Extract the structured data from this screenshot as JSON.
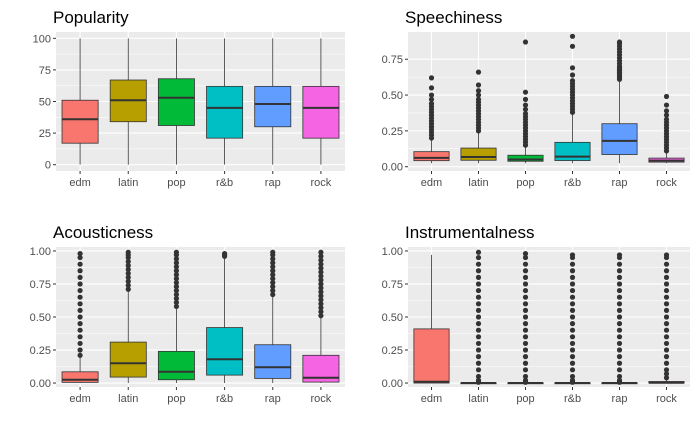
{
  "chart_data": [
    {
      "type": "boxplot",
      "title": "Popularity",
      "xlabel": "",
      "ylabel": "",
      "categories": [
        "edm",
        "latin",
        "pop",
        "r&b",
        "rap",
        "rock"
      ],
      "colors": [
        "#F8766D",
        "#B79F00",
        "#00BA38",
        "#00BFC4",
        "#619CFF",
        "#F564E3"
      ],
      "ylim": [
        -5,
        105
      ],
      "yticks": [
        0,
        25,
        50,
        75,
        100
      ],
      "ytick_labels": [
        "0",
        "25",
        "50",
        "75",
        "100"
      ],
      "grid": true,
      "boxes": [
        {
          "min": 0,
          "q1": 17,
          "median": 36,
          "q3": 51,
          "max": 100,
          "outliers": []
        },
        {
          "min": 0,
          "q1": 34,
          "median": 51,
          "q3": 67,
          "max": 100,
          "outliers": []
        },
        {
          "min": 0,
          "q1": 31,
          "median": 53,
          "q3": 68,
          "max": 100,
          "outliers": []
        },
        {
          "min": 0,
          "q1": 21,
          "median": 45,
          "q3": 62,
          "max": 100,
          "outliers": []
        },
        {
          "min": 0,
          "q1": 30,
          "median": 48,
          "q3": 62,
          "max": 100,
          "outliers": []
        },
        {
          "min": 0,
          "q1": 21,
          "median": 45,
          "q3": 62,
          "max": 100,
          "outliers": []
        }
      ]
    },
    {
      "type": "boxplot",
      "title": "Speechiness",
      "xlabel": "",
      "ylabel": "",
      "categories": [
        "edm",
        "latin",
        "pop",
        "r&b",
        "rap",
        "rock"
      ],
      "colors": [
        "#F8766D",
        "#B79F00",
        "#00BA38",
        "#00BFC4",
        "#619CFF",
        "#F564E3"
      ],
      "ylim": [
        -0.03,
        0.94
      ],
      "yticks": [
        0,
        0.25,
        0.5,
        0.75
      ],
      "ytick_labels": [
        "0.00",
        "0.25",
        "0.50",
        "0.75"
      ],
      "grid": true,
      "boxes": [
        {
          "min": 0.024,
          "q1": 0.042,
          "median": 0.062,
          "q3": 0.105,
          "max": 0.19,
          "outliers": [
            0.2,
            0.22,
            0.24,
            0.26,
            0.28,
            0.3,
            0.32,
            0.34,
            0.36,
            0.38,
            0.4,
            0.42,
            0.44,
            0.47,
            0.5,
            0.55,
            0.62
          ]
        },
        {
          "min": 0.024,
          "q1": 0.045,
          "median": 0.068,
          "q3": 0.13,
          "max": 0.24,
          "outliers": [
            0.25,
            0.27,
            0.29,
            0.31,
            0.33,
            0.35,
            0.37,
            0.39,
            0.41,
            0.43,
            0.45,
            0.47,
            0.5,
            0.53,
            0.57,
            0.66
          ]
        },
        {
          "min": 0.024,
          "q1": 0.038,
          "median": 0.05,
          "q3": 0.08,
          "max": 0.14,
          "outliers": [
            0.15,
            0.17,
            0.19,
            0.21,
            0.23,
            0.25,
            0.27,
            0.29,
            0.31,
            0.33,
            0.35,
            0.37,
            0.4,
            0.43,
            0.47,
            0.52,
            0.87
          ]
        },
        {
          "min": 0.024,
          "q1": 0.043,
          "median": 0.07,
          "q3": 0.17,
          "max": 0.37,
          "outliers": [
            0.38,
            0.4,
            0.42,
            0.44,
            0.46,
            0.48,
            0.5,
            0.52,
            0.54,
            0.56,
            0.58,
            0.6,
            0.64,
            0.69,
            0.84,
            0.91
          ]
        },
        {
          "min": 0.024,
          "q1": 0.085,
          "median": 0.18,
          "q3": 0.3,
          "max": 0.6,
          "outliers": [
            0.61,
            0.62,
            0.63,
            0.64,
            0.65,
            0.66,
            0.67,
            0.68,
            0.69,
            0.7,
            0.72,
            0.74,
            0.76,
            0.78,
            0.8,
            0.82,
            0.84,
            0.86,
            0.87
          ]
        },
        {
          "min": 0.024,
          "q1": 0.032,
          "median": 0.042,
          "q3": 0.06,
          "max": 0.1,
          "outliers": [
            0.11,
            0.13,
            0.15,
            0.17,
            0.19,
            0.21,
            0.23,
            0.25,
            0.27,
            0.29,
            0.31,
            0.33,
            0.36,
            0.39,
            0.43,
            0.49
          ]
        }
      ]
    },
    {
      "type": "boxplot",
      "title": "Acousticness",
      "xlabel": "",
      "ylabel": "",
      "categories": [
        "edm",
        "latin",
        "pop",
        "r&b",
        "rap",
        "rock"
      ],
      "colors": [
        "#F8766D",
        "#B79F00",
        "#00BA38",
        "#00BFC4",
        "#619CFF",
        "#F564E3"
      ],
      "ylim": [
        -0.03,
        1.03
      ],
      "yticks": [
        0,
        0.25,
        0.5,
        0.75,
        1
      ],
      "ytick_labels": [
        "0.00",
        "0.25",
        "0.50",
        "0.75",
        "1.00"
      ],
      "grid": true,
      "boxes": [
        {
          "min": 0,
          "q1": 0.005,
          "median": 0.025,
          "q3": 0.085,
          "max": 0.2,
          "outliers": [
            0.21,
            0.25,
            0.3,
            0.35,
            0.4,
            0.45,
            0.5,
            0.55,
            0.6,
            0.65,
            0.7,
            0.75,
            0.8,
            0.85,
            0.9,
            0.95,
            0.98
          ]
        },
        {
          "min": 0,
          "q1": 0.045,
          "median": 0.15,
          "q3": 0.31,
          "max": 0.7,
          "outliers": [
            0.71,
            0.74,
            0.77,
            0.8,
            0.83,
            0.86,
            0.89,
            0.92,
            0.95,
            0.97,
            0.99
          ]
        },
        {
          "min": 0,
          "q1": 0.025,
          "median": 0.085,
          "q3": 0.24,
          "max": 0.57,
          "outliers": [
            0.58,
            0.61,
            0.64,
            0.67,
            0.7,
            0.73,
            0.76,
            0.79,
            0.82,
            0.85,
            0.88,
            0.91,
            0.94,
            0.97,
            0.99
          ]
        },
        {
          "min": 0,
          "q1": 0.06,
          "median": 0.18,
          "q3": 0.42,
          "max": 0.95,
          "outliers": [
            0.96,
            0.97,
            0.98
          ]
        },
        {
          "min": 0,
          "q1": 0.035,
          "median": 0.12,
          "q3": 0.29,
          "max": 0.66,
          "outliers": [
            0.67,
            0.7,
            0.73,
            0.76,
            0.79,
            0.82,
            0.85,
            0.88,
            0.91,
            0.94,
            0.97,
            0.99
          ]
        },
        {
          "min": 0,
          "q1": 0.007,
          "median": 0.04,
          "q3": 0.21,
          "max": 0.5,
          "outliers": [
            0.51,
            0.54,
            0.57,
            0.6,
            0.63,
            0.66,
            0.69,
            0.72,
            0.75,
            0.78,
            0.81,
            0.84,
            0.87,
            0.9,
            0.93,
            0.96,
            0.99
          ]
        }
      ]
    },
    {
      "type": "boxplot",
      "title": "Instrumentalness",
      "xlabel": "",
      "ylabel": "",
      "categories": [
        "edm",
        "latin",
        "pop",
        "r&b",
        "rap",
        "rock"
      ],
      "colors": [
        "#F8766D",
        "#B79F00",
        "#00BA38",
        "#00BFC4",
        "#619CFF",
        "#F564E3"
      ],
      "ylim": [
        -0.03,
        1.03
      ],
      "yticks": [
        0,
        0.25,
        0.5,
        0.75,
        1
      ],
      "ytick_labels": [
        "0.00",
        "0.25",
        "0.50",
        "0.75",
        "1.00"
      ],
      "grid": true,
      "boxes": [
        {
          "min": 0,
          "q1": 0,
          "median": 0.01,
          "q3": 0.41,
          "max": 0.97,
          "outliers": []
        },
        {
          "min": 0,
          "q1": 0,
          "median": 0,
          "q3": 0.002,
          "max": 0.005,
          "outliers": [
            0.006,
            0.02,
            0.05,
            0.1,
            0.15,
            0.2,
            0.25,
            0.3,
            0.35,
            0.4,
            0.45,
            0.5,
            0.55,
            0.6,
            0.65,
            0.7,
            0.75,
            0.8,
            0.85,
            0.9,
            0.95,
            0.99
          ]
        },
        {
          "min": 0,
          "q1": 0,
          "median": 0,
          "q3": 0.002,
          "max": 0.005,
          "outliers": [
            0.006,
            0.02,
            0.05,
            0.1,
            0.15,
            0.2,
            0.25,
            0.3,
            0.35,
            0.4,
            0.45,
            0.5,
            0.55,
            0.6,
            0.65,
            0.7,
            0.75,
            0.8,
            0.85,
            0.9,
            0.95,
            0.98
          ]
        },
        {
          "min": 0,
          "q1": 0,
          "median": 0,
          "q3": 0.002,
          "max": 0.005,
          "outliers": [
            0.006,
            0.02,
            0.05,
            0.1,
            0.15,
            0.2,
            0.25,
            0.3,
            0.35,
            0.4,
            0.45,
            0.5,
            0.55,
            0.6,
            0.65,
            0.7,
            0.75,
            0.8,
            0.85,
            0.9,
            0.95,
            0.97
          ]
        },
        {
          "min": 0,
          "q1": 0,
          "median": 0,
          "q3": 0.002,
          "max": 0.005,
          "outliers": [
            0.006,
            0.02,
            0.05,
            0.1,
            0.15,
            0.2,
            0.25,
            0.3,
            0.35,
            0.4,
            0.45,
            0.5,
            0.55,
            0.6,
            0.65,
            0.7,
            0.75,
            0.8,
            0.85,
            0.9,
            0.95,
            0.97
          ]
        },
        {
          "min": 0,
          "q1": 0,
          "median": 0.002,
          "q3": 0.012,
          "max": 0.03,
          "outliers": [
            0.04,
            0.07,
            0.1,
            0.15,
            0.2,
            0.25,
            0.3,
            0.35,
            0.4,
            0.45,
            0.5,
            0.55,
            0.6,
            0.65,
            0.7,
            0.75,
            0.8,
            0.85,
            0.9,
            0.95,
            0.97
          ]
        }
      ]
    }
  ]
}
